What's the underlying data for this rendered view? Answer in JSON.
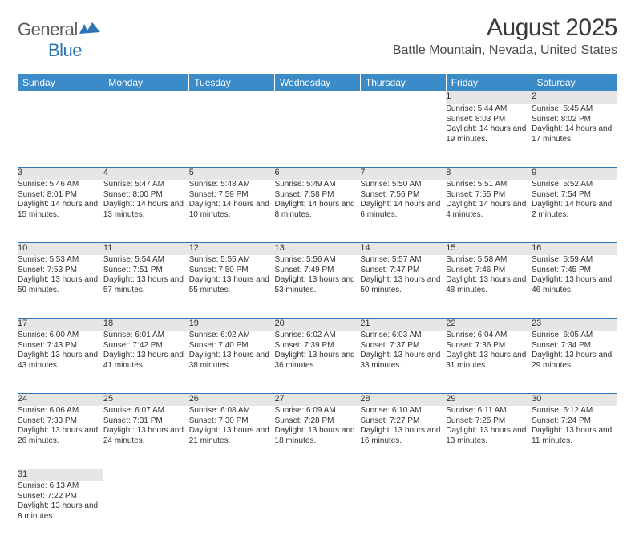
{
  "brand": {
    "part1": "General",
    "part2": "Blue"
  },
  "title": "August 2025",
  "location": "Battle Mountain, Nevada, United States",
  "colors": {
    "header_bg": "#3b8bc9",
    "header_text": "#ffffff",
    "daynum_bg": "#e6e6e6",
    "rule": "#2d74b5",
    "text": "#333333",
    "logo_gray": "#5a5a5a",
    "logo_blue": "#2d74b5"
  },
  "weekdays": [
    "Sunday",
    "Monday",
    "Tuesday",
    "Wednesday",
    "Thursday",
    "Friday",
    "Saturday"
  ],
  "weeks": [
    [
      null,
      null,
      null,
      null,
      null,
      {
        "n": "1",
        "sr": "5:44 AM",
        "ss": "8:03 PM",
        "dl": "14 hours and 19 minutes."
      },
      {
        "n": "2",
        "sr": "5:45 AM",
        "ss": "8:02 PM",
        "dl": "14 hours and 17 minutes."
      }
    ],
    [
      {
        "n": "3",
        "sr": "5:46 AM",
        "ss": "8:01 PM",
        "dl": "14 hours and 15 minutes."
      },
      {
        "n": "4",
        "sr": "5:47 AM",
        "ss": "8:00 PM",
        "dl": "14 hours and 13 minutes."
      },
      {
        "n": "5",
        "sr": "5:48 AM",
        "ss": "7:59 PM",
        "dl": "14 hours and 10 minutes."
      },
      {
        "n": "6",
        "sr": "5:49 AM",
        "ss": "7:58 PM",
        "dl": "14 hours and 8 minutes."
      },
      {
        "n": "7",
        "sr": "5:50 AM",
        "ss": "7:56 PM",
        "dl": "14 hours and 6 minutes."
      },
      {
        "n": "8",
        "sr": "5:51 AM",
        "ss": "7:55 PM",
        "dl": "14 hours and 4 minutes."
      },
      {
        "n": "9",
        "sr": "5:52 AM",
        "ss": "7:54 PM",
        "dl": "14 hours and 2 minutes."
      }
    ],
    [
      {
        "n": "10",
        "sr": "5:53 AM",
        "ss": "7:53 PM",
        "dl": "13 hours and 59 minutes."
      },
      {
        "n": "11",
        "sr": "5:54 AM",
        "ss": "7:51 PM",
        "dl": "13 hours and 57 minutes."
      },
      {
        "n": "12",
        "sr": "5:55 AM",
        "ss": "7:50 PM",
        "dl": "13 hours and 55 minutes."
      },
      {
        "n": "13",
        "sr": "5:56 AM",
        "ss": "7:49 PM",
        "dl": "13 hours and 53 minutes."
      },
      {
        "n": "14",
        "sr": "5:57 AM",
        "ss": "7:47 PM",
        "dl": "13 hours and 50 minutes."
      },
      {
        "n": "15",
        "sr": "5:58 AM",
        "ss": "7:46 PM",
        "dl": "13 hours and 48 minutes."
      },
      {
        "n": "16",
        "sr": "5:59 AM",
        "ss": "7:45 PM",
        "dl": "13 hours and 46 minutes."
      }
    ],
    [
      {
        "n": "17",
        "sr": "6:00 AM",
        "ss": "7:43 PM",
        "dl": "13 hours and 43 minutes."
      },
      {
        "n": "18",
        "sr": "6:01 AM",
        "ss": "7:42 PM",
        "dl": "13 hours and 41 minutes."
      },
      {
        "n": "19",
        "sr": "6:02 AM",
        "ss": "7:40 PM",
        "dl": "13 hours and 38 minutes."
      },
      {
        "n": "20",
        "sr": "6:02 AM",
        "ss": "7:39 PM",
        "dl": "13 hours and 36 minutes."
      },
      {
        "n": "21",
        "sr": "6:03 AM",
        "ss": "7:37 PM",
        "dl": "13 hours and 33 minutes."
      },
      {
        "n": "22",
        "sr": "6:04 AM",
        "ss": "7:36 PM",
        "dl": "13 hours and 31 minutes."
      },
      {
        "n": "23",
        "sr": "6:05 AM",
        "ss": "7:34 PM",
        "dl": "13 hours and 29 minutes."
      }
    ],
    [
      {
        "n": "24",
        "sr": "6:06 AM",
        "ss": "7:33 PM",
        "dl": "13 hours and 26 minutes."
      },
      {
        "n": "25",
        "sr": "6:07 AM",
        "ss": "7:31 PM",
        "dl": "13 hours and 24 minutes."
      },
      {
        "n": "26",
        "sr": "6:08 AM",
        "ss": "7:30 PM",
        "dl": "13 hours and 21 minutes."
      },
      {
        "n": "27",
        "sr": "6:09 AM",
        "ss": "7:28 PM",
        "dl": "13 hours and 18 minutes."
      },
      {
        "n": "28",
        "sr": "6:10 AM",
        "ss": "7:27 PM",
        "dl": "13 hours and 16 minutes."
      },
      {
        "n": "29",
        "sr": "6:11 AM",
        "ss": "7:25 PM",
        "dl": "13 hours and 13 minutes."
      },
      {
        "n": "30",
        "sr": "6:12 AM",
        "ss": "7:24 PM",
        "dl": "13 hours and 11 minutes."
      }
    ],
    [
      {
        "n": "31",
        "sr": "6:13 AM",
        "ss": "7:22 PM",
        "dl": "13 hours and 8 minutes."
      },
      null,
      null,
      null,
      null,
      null,
      null
    ]
  ],
  "labels": {
    "sunrise": "Sunrise:",
    "sunset": "Sunset:",
    "daylight": "Daylight:"
  }
}
